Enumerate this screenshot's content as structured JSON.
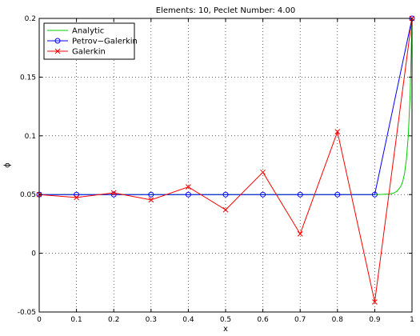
{
  "chart_data": {
    "type": "line",
    "title": "Elements: 10, Peclet Number: 4.00",
    "xlabel": "x",
    "ylabel": "ϕ",
    "xlim": [
      0,
      1
    ],
    "ylim": [
      -0.05,
      0.2
    ],
    "xticks": [
      "0",
      "0.1",
      "0.2",
      "0.3",
      "0.4",
      "0.5",
      "0.6",
      "0.7",
      "0.8",
      "0.9",
      "1"
    ],
    "yticks": [
      "-0.05",
      "0",
      "0.05",
      "0.1",
      "0.15",
      "0.2"
    ],
    "grid": true,
    "legend_position": "top-left",
    "series": [
      {
        "name": "Analytic",
        "color": "#00cc00",
        "marker": "none",
        "x": [
          0,
          0.1,
          0.2,
          0.3,
          0.4,
          0.5,
          0.6,
          0.7,
          0.8,
          0.9,
          0.92,
          0.94,
          0.95,
          0.96,
          0.97,
          0.975,
          0.98,
          0.985,
          0.99,
          0.995,
          1.0
        ],
        "y": [
          0.05,
          0.05,
          0.05,
          0.05,
          0.05,
          0.05,
          0.05,
          0.05,
          0.05,
          0.05,
          0.0501,
          0.0505,
          0.0512,
          0.0528,
          0.057,
          0.061,
          0.068,
          0.08,
          0.1,
          0.135,
          0.2
        ]
      },
      {
        "name": "Petrov−Galerkin",
        "color": "#0000ff",
        "marker": "circle",
        "x": [
          0,
          0.1,
          0.2,
          0.3,
          0.4,
          0.5,
          0.6,
          0.7,
          0.8,
          0.9,
          1.0
        ],
        "y": [
          0.05,
          0.05,
          0.05,
          0.05,
          0.05,
          0.05,
          0.05,
          0.05,
          0.05,
          0.05,
          0.2
        ]
      },
      {
        "name": "Galerkin",
        "color": "#ff0000",
        "marker": "x",
        "x": [
          0,
          0.1,
          0.2,
          0.3,
          0.4,
          0.5,
          0.6,
          0.7,
          0.8,
          0.9,
          1.0
        ],
        "y": [
          0.05,
          0.0475,
          0.0515,
          0.0455,
          0.0565,
          0.037,
          0.069,
          0.0165,
          0.1035,
          -0.0415,
          0.2
        ]
      }
    ]
  }
}
